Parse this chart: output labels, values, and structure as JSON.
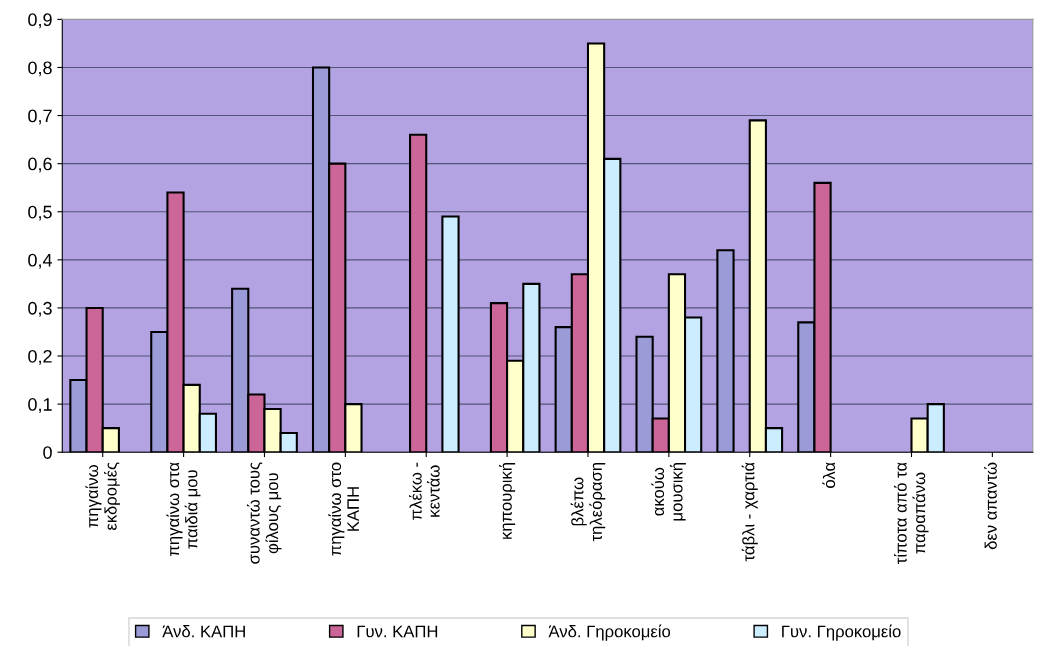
{
  "chart_data": {
    "type": "bar",
    "categories": [
      "πηγαίνω\nεκδρομές",
      "πηγαίνω στα\nπαιδιά μου",
      "συναντώ τους\nφίλους μου",
      "πηγαίνω στο\nΚΑΠΗ",
      "πλέκω -\nκεντάω",
      "κηπουρική",
      "βλέπω\nτηλεόραση",
      "ακούω\nμουσική",
      "τάβλι - χαρτιά",
      "όλα",
      "τίποτα από τα\nπαραπάνω",
      "δεν απαντώ"
    ],
    "series": [
      {
        "name": "Άνδ. ΚΑΠΗ",
        "color": "#9b9bd8",
        "values": [
          0.15,
          0.25,
          0.34,
          0.8,
          null,
          null,
          0.26,
          0.24,
          0.42,
          0.27,
          null,
          null
        ]
      },
      {
        "name": "Γυν. ΚΑΠΗ",
        "color": "#cc6699",
        "values": [
          0.3,
          0.54,
          0.12,
          0.6,
          0.66,
          0.31,
          0.37,
          0.07,
          null,
          0.56,
          null,
          null
        ]
      },
      {
        "name": "Άνδ. Γηροκομείο",
        "color": "#ffffcc",
        "values": [
          0.05,
          0.14,
          0.09,
          0.1,
          null,
          0.19,
          0.85,
          0.37,
          0.69,
          null,
          0.07,
          null
        ]
      },
      {
        "name": "Γυν. Γηροκομείο",
        "color": "#ccecff",
        "values": [
          null,
          0.08,
          0.04,
          null,
          0.49,
          0.35,
          0.61,
          0.28,
          0.05,
          null,
          0.1,
          null
        ]
      }
    ],
    "ylim": [
      0,
      0.9
    ],
    "yticks": [
      {
        "value": 0,
        "label": "0"
      },
      {
        "value": 0.1,
        "label": "0,1"
      },
      {
        "value": 0.2,
        "label": "0,2"
      },
      {
        "value": 0.3,
        "label": "0,3"
      },
      {
        "value": 0.4,
        "label": "0,4"
      },
      {
        "value": 0.5,
        "label": "0,5"
      },
      {
        "value": 0.6,
        "label": "0,6"
      },
      {
        "value": 0.7,
        "label": "0,7"
      },
      {
        "value": 0.8,
        "label": "0,8"
      },
      {
        "value": 0.9,
        "label": "0,9"
      }
    ],
    "grid": "y",
    "legend": "bottom"
  }
}
